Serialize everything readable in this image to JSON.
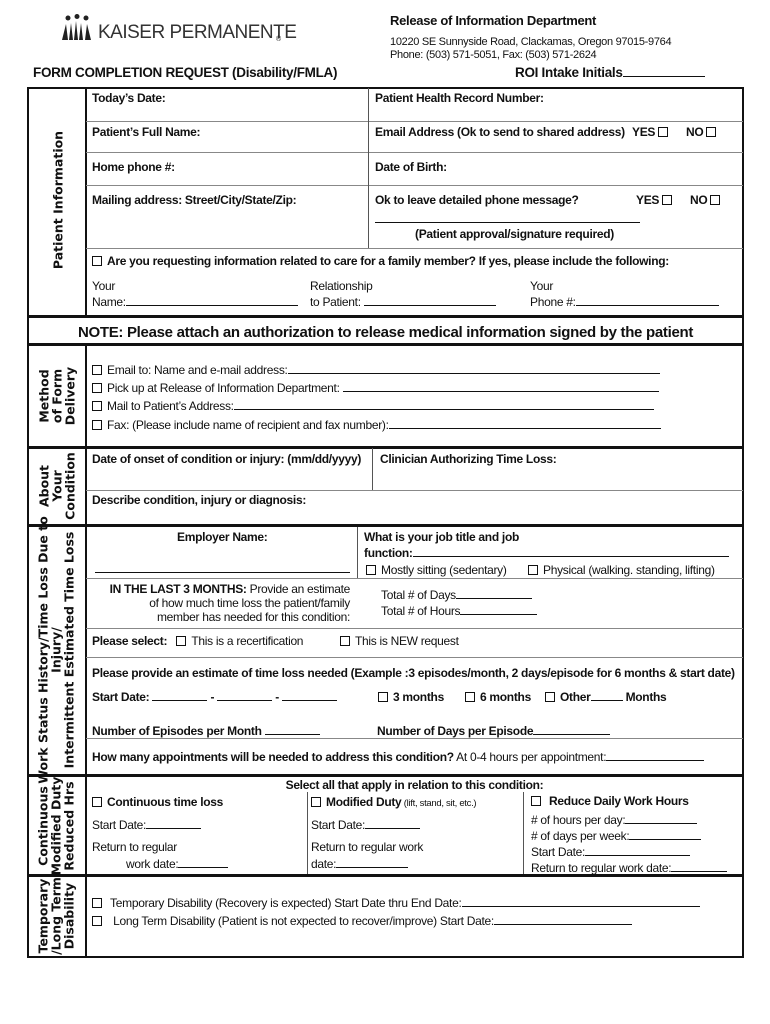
{
  "header": {
    "logo_text": "KAISER PERMANENTE",
    "logo_mark": "®",
    "dept": "Release of Information Department",
    "address": "10220 SE Sunnyside Road, Clackamas, Oregon  97015-9764",
    "phone": "Phone: (503) 571-5051,  Fax: (503) 571-2624",
    "title": "FORM COMPLETION REQUEST (Disability/FMLA)",
    "roi": "ROI Intake Initials"
  },
  "patient": {
    "label": "Patient Information",
    "todays_date": "Today’s Date:",
    "phrn": "Patient Health Record Number:",
    "full_name": "Patient’s Full Name:",
    "email": "Email Address (Ok to send to shared address)",
    "yes": "YES",
    "no": "NO",
    "home_phone": "Home phone #:",
    "dob": "Date of Birth:",
    "mailing": "Mailing address: Street/City/State/Zip:",
    "ok_msg": "Ok to leave detailed phone message?",
    "signature": "(Patient approval/signature required)",
    "family_q": "Are you requesting information related to care for a family member? If yes, please include the following:",
    "your": "Your",
    "name": "Name:",
    "relationship": "Relationship",
    "to_patient": "to Patient:",
    "phone": "Phone #:"
  },
  "note": "NOTE: Please attach an authorization to release medical information signed by the patient",
  "delivery": {
    "label1": "Method",
    "label2": "of Form",
    "label3": "Delivery",
    "options": [
      "Email to: Name and  e-mail address:",
      "Pick up at Release of Information Department:",
      "Mail to Patient’s Address:",
      "Fax: (Please include name of recipient and fax number):"
    ]
  },
  "condition": {
    "label1": "About",
    "label2": "Your",
    "label3": "Condition",
    "onset": "Date of onset of condition or injury: (mm/dd/yyyy)",
    "clinician": "Clinician Authorizing Time Loss:",
    "describe": "Describe condition, injury or diagnosis:"
  },
  "work": {
    "label1": "Work Status History/Time Loss Due to",
    "label2": "Injury/",
    "label3": "Intermittent Estimated Time Loss",
    "employer": "Employer Name:",
    "job1": "What is your job title and job",
    "job2": "function:",
    "sitting": "Mostly sitting (sedentary)",
    "physical": "Physical (walking. standing, lifting)",
    "last3_bold": "IN THE LAST 3 MONTHS:",
    "last3_a": " Provide an estimate",
    "last3_b": "of how much time loss the patient/family",
    "last3_c": "member has needed for this condition:",
    "total_days": "Total # of Days",
    "total_hours": "Total # of Hours",
    "please_select": "Please select:",
    "recert": "This is a recertification",
    "new_req": "This is NEW request",
    "estimate": "Please provide an estimate of time loss needed (Example :3 episodes/month, 2 days/episode for 6 months & start date)",
    "start_date": "Start Date:",
    "dash": "-",
    "m3": "3 months",
    "m6": "6 months",
    "other": "Other",
    "months": "Months",
    "episodes": "Number of Episodes per Month",
    "days_ep": "Number of Days per Episode",
    "appts_bold": "How many appointments will be needed to address this condition?",
    "appts": " At  0-4 hours per appointment:"
  },
  "continuous": {
    "label1": "Continuous",
    "label2": "Modified Duty",
    "label3": "Reduced  Hrs",
    "select_all": "Select all that apply in relation to this condition:",
    "cont": "Continuous time loss",
    "start": "Start Date:",
    "return1": "Return to regular",
    "return2": "work date:",
    "mod": "Modified Duty",
    "mod_note": " (lift, stand, sit, etc.)",
    "mod_return1": "Return to regular work",
    "mod_return2": "date:",
    "reduce": "Reduce Daily Work Hours",
    "hours": "# of hours per day:",
    "days": "# of days per week:",
    "r_start": "Start Date:",
    "r_return": "Return to regular work date:"
  },
  "disability": {
    "label1": "Temporary",
    "label2": "/Long Term",
    "label3": "Disability",
    "temp": "Temporary Disability (Recovery is expected) Start Date thru End Date:",
    "long": "Long Term Disability (Patient is not expected to recover/improve) Start Date:"
  }
}
